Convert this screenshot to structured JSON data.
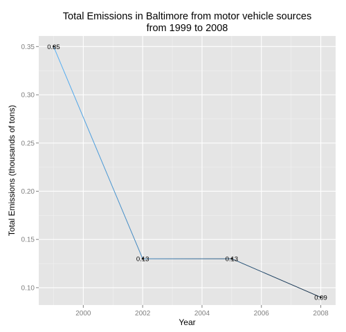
{
  "chart_data": {
    "type": "line",
    "title": "Total Emissions in Baltimore from motor vehicle sources\nfrom 1999 to 2008",
    "xlabel": "Year",
    "ylabel": "Total Emissions (thousands of tons)",
    "x": [
      1999,
      2002,
      2005,
      2008
    ],
    "values": [
      0.35,
      0.13,
      0.13,
      0.09
    ],
    "data_labels": [
      "0.35",
      "0.13",
      "0.13",
      "0.09"
    ],
    "xlim": [
      1998.5,
      2008.5
    ],
    "ylim": [
      0.082,
      0.361
    ],
    "x_ticks": [
      2000,
      2002,
      2004,
      2006,
      2008
    ],
    "x_tick_labels": [
      "2000",
      "2002",
      "2004",
      "2006",
      "2008"
    ],
    "y_ticks": [
      0.1,
      0.15,
      0.2,
      0.25,
      0.3,
      0.35
    ],
    "y_tick_labels": [
      "0.10",
      "0.15",
      "0.20",
      "0.25",
      "0.30",
      "0.35"
    ],
    "grid": true,
    "legend": "none",
    "colors": {
      "panel_background": "#e5e5e5",
      "grid_major": "#ffffff",
      "grid_minor": "#f2f2f2",
      "line_start": "#56b1f7",
      "line_end": "#132b43"
    }
  }
}
